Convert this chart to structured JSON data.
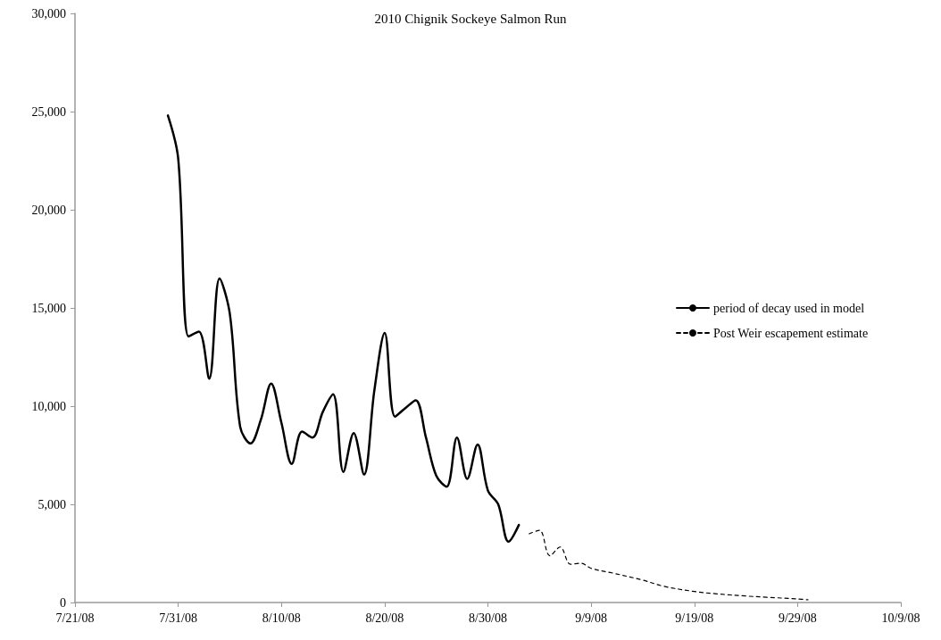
{
  "chart_data": {
    "type": "line",
    "title": "2010 Chignik Sockeye Salmon Run",
    "series": [
      {
        "name": "period of decay used in model",
        "color": "#000000",
        "line_style": "solid",
        "x": [
          "--07-30",
          "--07-31",
          "--08-01",
          "--08-02",
          "--08-03",
          "--08-04",
          "--08-05",
          "--08-06",
          "--08-07",
          "--08-08",
          "--08-09",
          "--08-10",
          "--08-11",
          "--08-12",
          "--08-13",
          "--08-14",
          "--08-15",
          "--08-16",
          "--08-17",
          "--08-18",
          "--08-19",
          "--08-20",
          "--08-21",
          "--08-22",
          "--08-23",
          "--08-24",
          "--08-25",
          "--08-26",
          "--08-27",
          "--08-28",
          "--08-29",
          "--08-30",
          "--08-31",
          "--09-01",
          "--09-02"
        ],
        "values": [
          24800,
          22600,
          13550,
          13800,
          11400,
          16500,
          14700,
          8950,
          8100,
          9300,
          11150,
          9150,
          7060,
          8700,
          8400,
          9700,
          10600,
          6650,
          8630,
          6520,
          10800,
          13730,
          9470,
          9900,
          10300,
          8400,
          6450,
          5900,
          8400,
          6300,
          8050,
          5700,
          5000,
          3100,
          3950
        ]
      },
      {
        "name": "Post Weir escapement estimate",
        "color": "#000000",
        "line_style": "dashed",
        "x": [
          "--09-03",
          "--09-04",
          "--09-05",
          "--09-06",
          "--09-07",
          "--09-08",
          "--09-09",
          "--09-11",
          "--09-14",
          "--09-16",
          "--09-19",
          "--09-21",
          "--09-24",
          "--09-26",
          "--09-29",
          "--09-30"
        ],
        "values": [
          3500,
          3680,
          2380,
          2830,
          1950,
          2000,
          1740,
          1510,
          1140,
          830,
          560,
          450,
          330,
          270,
          180,
          140
        ]
      }
    ],
    "xlim": [
      "--07-21",
      "--10-09"
    ],
    "xticks": [
      {
        "value": "--07-21",
        "label": "7/21/08"
      },
      {
        "value": "--07-31",
        "label": "7/31/08"
      },
      {
        "value": "--08-10",
        "label": "8/10/08"
      },
      {
        "value": "--08-20",
        "label": "8/20/08"
      },
      {
        "value": "--08-30",
        "label": "8/30/08"
      },
      {
        "value": "--09-09",
        "label": "9/9/08"
      },
      {
        "value": "--09-19",
        "label": "9/19/08"
      },
      {
        "value": "--09-29",
        "label": "9/29/08"
      },
      {
        "value": "--10-09",
        "label": "10/9/08"
      }
    ],
    "ylim": [
      0,
      30000
    ],
    "yticks": [
      {
        "value": 0,
        "label": "0"
      },
      {
        "value": 5000,
        "label": "5,000"
      },
      {
        "value": 10000,
        "label": "10,000"
      },
      {
        "value": 15000,
        "label": "15,000"
      },
      {
        "value": 20000,
        "label": "20,000"
      },
      {
        "value": 25000,
        "label": "25,000"
      },
      {
        "value": 30000,
        "label": "30,000"
      }
    ],
    "grid": false,
    "legend": "right",
    "marker": "none"
  }
}
